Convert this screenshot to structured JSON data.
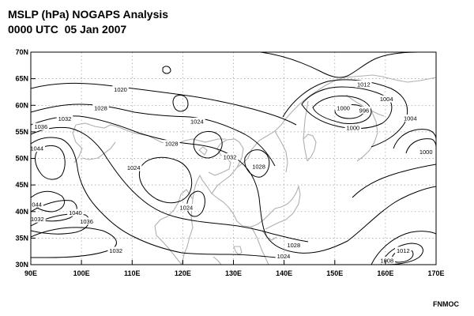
{
  "title": {
    "line1": "MSLP (hPa) NOGAPS Analysis",
    "line2": "0000 UTC  05 Jan 2007"
  },
  "credit": "FNMOC",
  "axes": {
    "lat_labels": [
      "70N",
      "65N",
      "60N",
      "55N",
      "50N",
      "45N",
      "40N",
      "35N",
      "30N"
    ],
    "lon_labels": [
      "90E",
      "100E",
      "110E",
      "120E",
      "130E",
      "140E",
      "150E",
      "160E",
      "170E"
    ]
  },
  "contour_labels": [
    {
      "text": "1020",
      "lon": 107.7,
      "lat": 63.0
    },
    {
      "text": "1028",
      "lon": 103.8,
      "lat": 59.5
    },
    {
      "text": "1032",
      "lon": 96.7,
      "lat": 57.5
    },
    {
      "text": "1036",
      "lon": 92.0,
      "lat": 56.0
    },
    {
      "text": "1044",
      "lon": 91.2,
      "lat": 51.9
    },
    {
      "text": "1024",
      "lon": 122.8,
      "lat": 57.0
    },
    {
      "text": "1028",
      "lon": 117.8,
      "lat": 52.8
    },
    {
      "text": "1024",
      "lon": 110.3,
      "lat": 48.3
    },
    {
      "text": "1032",
      "lon": 129.3,
      "lat": 50.3
    },
    {
      "text": "1028",
      "lon": 135.0,
      "lat": 48.5
    },
    {
      "text": "1024",
      "lon": 120.7,
      "lat": 40.8
    },
    {
      "text": "044",
      "lon": 91.2,
      "lat": 41.4
    },
    {
      "text": "1040",
      "lon": 98.8,
      "lat": 39.8
    },
    {
      "text": "1032",
      "lon": 91.3,
      "lat": 38.6
    },
    {
      "text": "1036",
      "lon": 101.0,
      "lat": 38.2
    },
    {
      "text": "1032",
      "lon": 106.8,
      "lat": 32.7
    },
    {
      "text": "1028",
      "lon": 141.9,
      "lat": 33.7
    },
    {
      "text": "1024",
      "lon": 139.9,
      "lat": 31.6
    },
    {
      "text": "1012",
      "lon": 155.7,
      "lat": 64.0
    },
    {
      "text": "1004",
      "lon": 160.2,
      "lat": 61.2
    },
    {
      "text": "1000",
      "lon": 151.7,
      "lat": 59.5
    },
    {
      "text": "996",
      "lon": 155.8,
      "lat": 59.1
    },
    {
      "text": "1004",
      "lon": 164.9,
      "lat": 57.6
    },
    {
      "text": "1000",
      "lon": 153.6,
      "lat": 55.8
    },
    {
      "text": "1000",
      "lon": 168.0,
      "lat": 51.3
    },
    {
      "text": "1012",
      "lon": 163.5,
      "lat": 32.7
    },
    {
      "text": "1008",
      "lon": 160.3,
      "lat": 30.8
    }
  ]
}
